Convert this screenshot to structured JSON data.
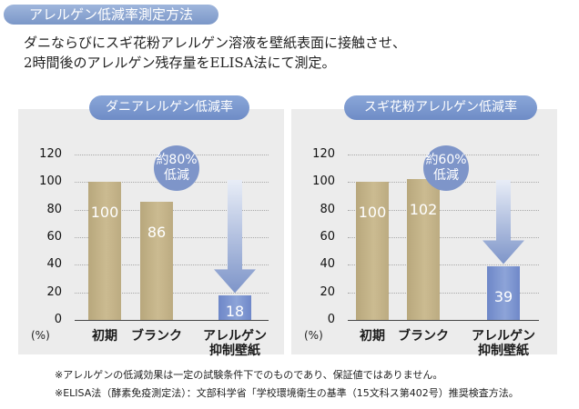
{
  "header": {
    "title": "アレルゲン低減率測定方法"
  },
  "description": [
    "ダニならびにスギ花粉アレルゲン溶液を壁紙表面に接触させ、",
    "2時間後のアレルゲン残存量をELISA法にて測定。"
  ],
  "colors": {
    "accent_blue": "#7e95c9",
    "bar_tan": "#c4b488",
    "panel_bg": "#ececec"
  },
  "chart_data": [
    {
      "type": "bar",
      "title": "ダニアレルゲン低減率",
      "categories": [
        "初期",
        "ブランク",
        "アレルゲン\n抑制壁紙"
      ],
      "values": [
        100,
        86,
        18
      ],
      "ylim": [
        0,
        120
      ],
      "yticks": [
        "0",
        "20",
        "40",
        "60",
        "80",
        "100",
        "120"
      ],
      "y_unit": "(%)",
      "grid": true,
      "annotation": [
        "約80%",
        "低減"
      ]
    },
    {
      "type": "bar",
      "title": "スギ花粉アレルゲン低減率",
      "categories": [
        "初期",
        "ブランク",
        "アレルゲン\n抑制壁紙"
      ],
      "values": [
        100,
        102,
        39
      ],
      "ylim": [
        0,
        120
      ],
      "yticks": [
        "0",
        "20",
        "40",
        "60",
        "80",
        "100",
        "120"
      ],
      "y_unit": "(%)",
      "grid": true,
      "annotation": [
        "約60%",
        "低減"
      ]
    }
  ],
  "notes": [
    "※アレルゲンの低減効果は一定の試験条件下でのものであり、保証値ではありません。",
    "※ELISA法（酵素免疫測定法）：文部科学省「学校環境衛生の基準（15文科ス第402号）推奨検査方法。"
  ]
}
